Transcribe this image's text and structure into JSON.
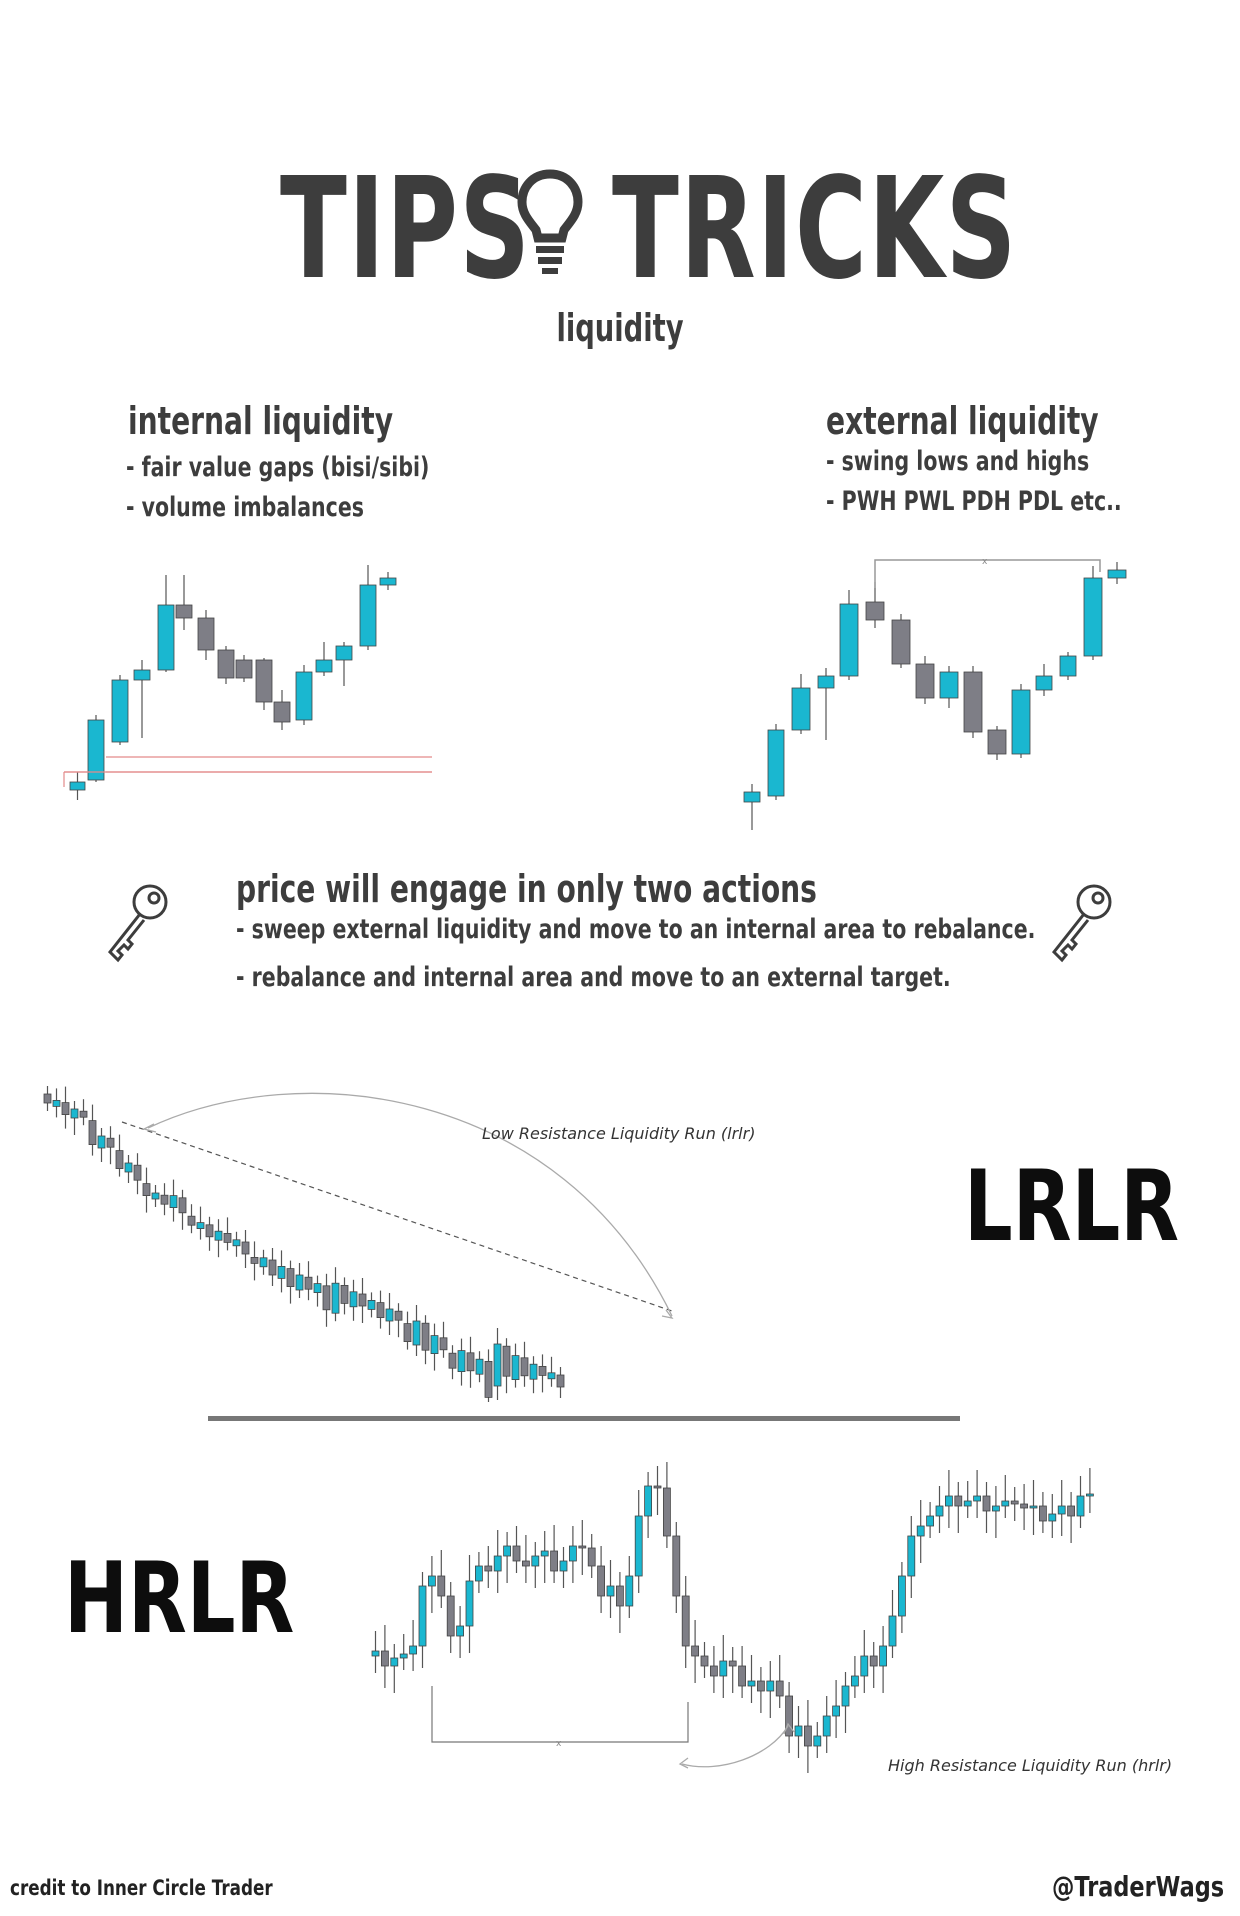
{
  "header": {
    "title_left": "TIPS",
    "title_right": "TRICKS",
    "subtitle": "liquidity",
    "icon": "lightbulb-icon"
  },
  "internal": {
    "heading": "internal liquidity",
    "items": [
      "- fair value gaps (bisi/sibi)",
      "- volume imbalances"
    ]
  },
  "external": {
    "heading": "external liquidity",
    "items": [
      "- swing lows and highs",
      "- PWH PWL PDH PDL etc.."
    ]
  },
  "actions": {
    "heading": "price will engage in only two actions",
    "items": [
      "- sweep external liquidity and move to an internal area to rebalance.",
      "- rebalance and internal area and move to an external target."
    ],
    "icon": "key-icon"
  },
  "lrlr": {
    "label": "LRLR",
    "note": "Low Resistance Liquidity Run (lrlr)"
  },
  "hrlr": {
    "label": "HRLR",
    "note": "High Resistance Liquidity Run (hrlr)"
  },
  "footer": {
    "credit": "credit to Inner Circle Trader",
    "handle": "@TraderWags"
  },
  "colors": {
    "bull": "#1ab7d0",
    "bear": "#7e7e86",
    "text": "#3d3d3d"
  }
}
